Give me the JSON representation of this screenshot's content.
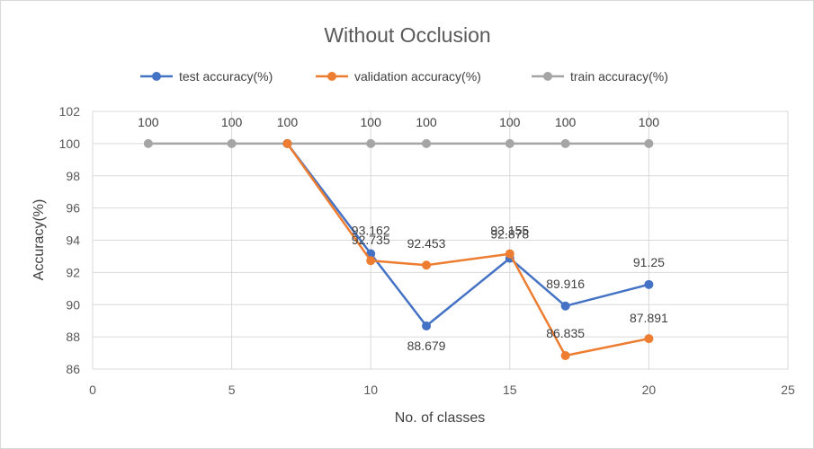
{
  "chart_data": {
    "type": "scatter",
    "title": "Without Occlusion",
    "xlabel": "No. of classes",
    "ylabel": "Accuracy(%)",
    "xlim": [
      0,
      25
    ],
    "ylim": [
      86,
      102
    ],
    "xticks": [
      0,
      5,
      10,
      15,
      20,
      25
    ],
    "yticks": [
      86,
      88,
      90,
      92,
      94,
      96,
      98,
      100,
      102
    ],
    "grid": true,
    "legend": "top",
    "series": [
      {
        "name": "test accuracy(%)",
        "color": "#4472C4",
        "x": [
          7,
          10,
          12,
          15,
          17,
          20
        ],
        "y": [
          100,
          93.162,
          88.679,
          92.878,
          89.916,
          91.25
        ],
        "labels": [
          "",
          "93.162",
          "88.679",
          "92.878",
          "89.916",
          "91.25"
        ]
      },
      {
        "name": "validation accuracy(%)",
        "color": "#ED7D31",
        "x": [
          7,
          10,
          12,
          15,
          17,
          20
        ],
        "y": [
          100,
          92.735,
          92.453,
          93.155,
          86.835,
          87.891
        ],
        "labels": [
          "",
          "92.735",
          "92.453",
          "93.155",
          "86.835",
          "87.891"
        ]
      },
      {
        "name": "train accuracy(%)",
        "color": "#A5A5A5",
        "x": [
          2,
          5,
          7,
          10,
          12,
          15,
          17,
          20
        ],
        "y": [
          100,
          100,
          100,
          100,
          100,
          100,
          100,
          100
        ],
        "labels": [
          "100",
          "100",
          "100",
          "100",
          "100",
          "100",
          "100",
          "100"
        ]
      }
    ]
  }
}
